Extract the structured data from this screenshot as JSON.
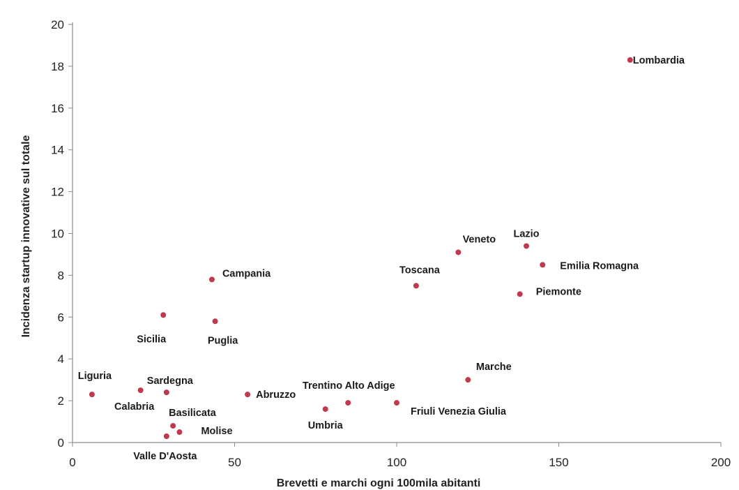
{
  "chart_data": {
    "type": "scatter",
    "xlabel": "Brevetti e marchi ogni 100mila abitanti",
    "ylabel": "Incidenza startup innovative sul totale",
    "xlim": [
      0,
      200
    ],
    "ylim": [
      0,
      20
    ],
    "xticks": [
      0,
      50,
      100,
      150,
      200
    ],
    "yticks": [
      0,
      2,
      4,
      6,
      8,
      10,
      12,
      14,
      16,
      18,
      20
    ],
    "grid": false,
    "marker_color": "#c0394f",
    "points": [
      {
        "label": "Lombardia",
        "x": 172,
        "y": 18.3
      },
      {
        "label": "Lazio",
        "x": 140,
        "y": 9.4
      },
      {
        "label": "Veneto",
        "x": 119,
        "y": 9.1
      },
      {
        "label": "Emilia Romagna",
        "x": 145,
        "y": 8.5
      },
      {
        "label": "Toscana",
        "x": 106,
        "y": 7.5
      },
      {
        "label": "Piemonte",
        "x": 138,
        "y": 7.1
      },
      {
        "label": "Campania",
        "x": 43,
        "y": 7.8
      },
      {
        "label": "Sicilia",
        "x": 28,
        "y": 6.1
      },
      {
        "label": "Puglia",
        "x": 44,
        "y": 5.8
      },
      {
        "label": "Marche",
        "x": 122,
        "y": 3.0
      },
      {
        "label": "Trentino Alto Adige",
        "x": 85,
        "y": 1.9
      },
      {
        "label": "Friuli Venezia Giulia",
        "x": 100,
        "y": 1.9
      },
      {
        "label": "Umbria",
        "x": 78,
        "y": 1.6
      },
      {
        "label": "Abruzzo",
        "x": 54,
        "y": 2.3
      },
      {
        "label": "Liguria",
        "x": 6,
        "y": 2.3
      },
      {
        "label": "Calabria",
        "x": 21,
        "y": 2.5
      },
      {
        "label": "Sardegna",
        "x": 29,
        "y": 2.4
      },
      {
        "label": "Basilicata",
        "x": 31,
        "y": 0.8
      },
      {
        "label": "Molise",
        "x": 33,
        "y": 0.5
      },
      {
        "label": "Valle D'Aosta",
        "x": 29,
        "y": 0.3
      }
    ]
  }
}
